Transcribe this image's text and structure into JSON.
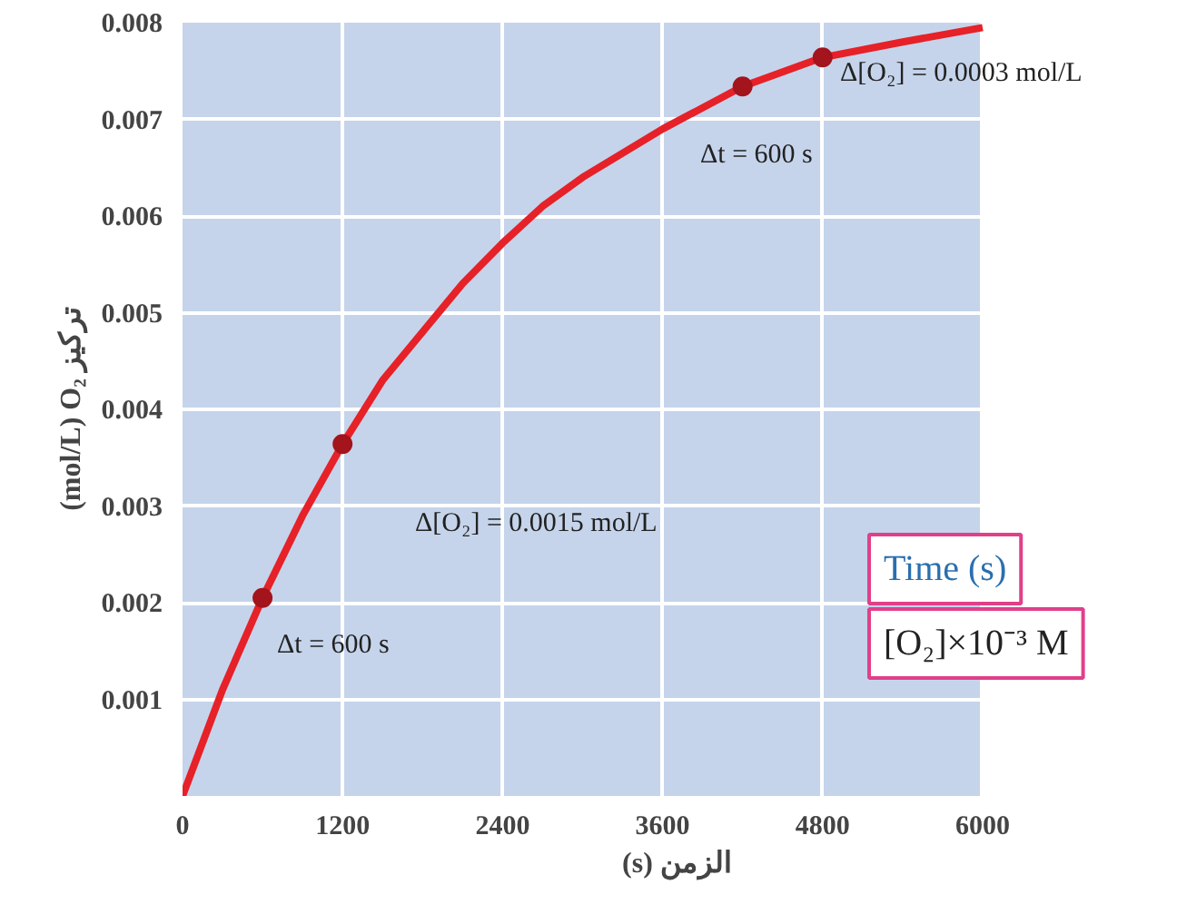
{
  "chart_data": {
    "type": "line",
    "xlabel": "(s) الزمن",
    "ylabel": "(mol/L) O₂ تركيز",
    "xlim": [
      0,
      6000
    ],
    "ylim": [
      0,
      0.008
    ],
    "xticks": [
      0,
      1200,
      2400,
      3600,
      4800,
      6000
    ],
    "yticks": [
      0.001,
      0.002,
      0.003,
      0.004,
      0.005,
      0.006,
      0.007,
      0.008
    ],
    "grid": true,
    "series": [
      {
        "color": "#e62128",
        "x": [
          0,
          300,
          600,
          900,
          1200,
          1500,
          1800,
          2100,
          2400,
          2700,
          3000,
          3600,
          4200,
          4800,
          5400,
          6000
        ],
        "values": [
          0,
          0.0011,
          0.00205,
          0.0029,
          0.00364,
          0.0043,
          0.0048,
          0.0053,
          0.00572,
          0.0061,
          0.0064,
          0.0069,
          0.00734,
          0.00764,
          0.0078,
          0.00795
        ]
      },
      {
        "type": "scatter",
        "color": "#a3141c",
        "marker": "circle",
        "x": [
          600,
          1200,
          4200,
          4800
        ],
        "values": [
          0.00205,
          0.00364,
          0.00734,
          0.00764
        ]
      }
    ],
    "annotations": [
      "Δ[O₂] = 0.0015 mol/L",
      "Δt = 600 s",
      "Δ[O₂] = 0.0003 mol/L",
      "Δt = 600 s",
      "Time (s)",
      "[O₂]×10⁻³ M"
    ]
  }
}
